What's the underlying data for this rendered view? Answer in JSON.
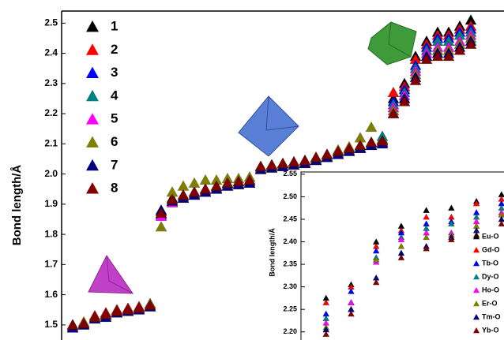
{
  "chart_data": [
    {
      "type": "scatter",
      "y_label": "Bond length/Å",
      "x": [
        1,
        2,
        3,
        4,
        5,
        6,
        7,
        8,
        9,
        10,
        11,
        12,
        13,
        14,
        15,
        16,
        17,
        18,
        19,
        20,
        21,
        22,
        23,
        24,
        25,
        26,
        27,
        28,
        29,
        30,
        31,
        32,
        33,
        34,
        35,
        36,
        37
      ],
      "xlim": [
        0,
        40
      ],
      "ylim": [
        1.45,
        2.54
      ],
      "yticks": [
        1.5,
        1.6,
        1.7,
        1.8,
        1.9,
        {
          "value": 2,
          "label": "2.0"
        },
        2.1,
        2.2,
        2.3,
        2.4,
        2.5
      ],
      "series": [
        {
          "name": "1",
          "color": "#000000",
          "values": [
            1.5,
            1.505,
            1.53,
            1.54,
            1.55,
            1.555,
            1.56,
            1.57,
            1.88,
            1.92,
            1.93,
            1.94,
            1.95,
            1.96,
            1.97,
            1.975,
            1.98,
            2.025,
            2.03,
            2.035,
            2.04,
            2.045,
            2.055,
            2.065,
            2.075,
            2.085,
            2.095,
            2.105,
            2.115,
            2.25,
            2.3,
            2.39,
            2.44,
            2.47,
            2.47,
            2.49,
            2.51
          ]
        },
        {
          "name": "2",
          "color": "#ff0000",
          "values": [
            1.5,
            1.505,
            1.53,
            1.54,
            1.55,
            1.555,
            1.56,
            1.57,
            1.875,
            1.915,
            1.93,
            1.94,
            1.95,
            1.96,
            1.97,
            1.975,
            1.98,
            2.025,
            2.03,
            2.035,
            2.04,
            2.045,
            2.055,
            2.065,
            2.075,
            2.085,
            2.095,
            2.105,
            2.115,
            2.27,
            2.29,
            2.38,
            2.43,
            2.46,
            2.46,
            2.48,
            2.49
          ]
        },
        {
          "name": "3",
          "color": "#0000ff",
          "values": [
            1.49,
            1.5,
            1.52,
            1.53,
            1.54,
            1.545,
            1.55,
            1.56,
            1.865,
            1.905,
            1.92,
            1.93,
            1.94,
            1.95,
            1.96,
            1.965,
            1.97,
            2.015,
            2.02,
            2.025,
            2.03,
            2.035,
            2.045,
            2.055,
            2.065,
            2.075,
            2.085,
            2.095,
            2.105,
            2.24,
            2.28,
            2.36,
            2.42,
            2.45,
            2.45,
            2.47,
            2.48
          ]
        },
        {
          "name": "4",
          "color": "#008080",
          "values": [
            1.495,
            1.5,
            1.525,
            1.535,
            1.545,
            1.55,
            1.555,
            1.565,
            1.87,
            1.91,
            1.925,
            1.935,
            1.945,
            1.955,
            1.965,
            1.97,
            1.975,
            2.02,
            2.025,
            2.03,
            2.035,
            2.04,
            2.05,
            2.06,
            2.07,
            2.08,
            2.09,
            2.1,
            2.125,
            2.23,
            2.27,
            2.35,
            2.41,
            2.44,
            2.44,
            2.46,
            2.47
          ]
        },
        {
          "name": "5",
          "color": "#ff00ff",
          "values": [
            1.495,
            1.5,
            1.52,
            1.53,
            1.54,
            1.545,
            1.55,
            1.56,
            1.86,
            1.905,
            1.92,
            1.93,
            1.94,
            1.95,
            1.96,
            1.965,
            1.97,
            2.015,
            2.02,
            2.025,
            2.03,
            2.035,
            2.045,
            2.055,
            2.065,
            2.075,
            2.085,
            2.095,
            2.1,
            2.22,
            2.26,
            2.34,
            2.4,
            2.42,
            2.42,
            2.44,
            2.46
          ]
        },
        {
          "name": "6",
          "color": "#808000",
          "values": [
            1.5,
            1.51,
            1.52,
            1.53,
            1.545,
            1.55,
            1.555,
            1.57,
            1.825,
            1.94,
            1.96,
            1.97,
            1.98,
            1.98,
            1.985,
            1.985,
            1.99,
            2.02,
            2.025,
            2.03,
            2.035,
            2.04,
            2.05,
            2.06,
            2.08,
            2.09,
            2.12,
            2.155,
            2.11,
            2.21,
            2.25,
            2.33,
            2.39,
            2.41,
            2.41,
            2.43,
            2.45
          ]
        },
        {
          "name": "7",
          "color": "#000080",
          "values": [
            1.49,
            1.5,
            1.52,
            1.525,
            1.54,
            1.545,
            1.55,
            1.56,
            1.88,
            1.91,
            1.92,
            1.93,
            1.94,
            1.95,
            1.96,
            1.965,
            1.97,
            2.015,
            2.02,
            2.025,
            2.03,
            2.035,
            2.045,
            2.055,
            2.065,
            2.075,
            2.085,
            2.095,
            2.1,
            2.2,
            2.25,
            2.32,
            2.39,
            2.4,
            2.4,
            2.42,
            2.44
          ]
        },
        {
          "name": "8",
          "color": "#800000",
          "values": [
            1.5,
            1.505,
            1.525,
            1.535,
            1.545,
            1.55,
            1.555,
            1.565,
            1.87,
            1.915,
            1.93,
            1.94,
            1.95,
            1.96,
            1.97,
            1.975,
            1.98,
            2.025,
            2.03,
            2.035,
            2.04,
            2.045,
            2.055,
            2.065,
            2.075,
            2.085,
            2.095,
            2.105,
            2.11,
            2.2,
            2.24,
            2.31,
            2.38,
            2.39,
            2.39,
            2.41,
            2.43
          ]
        }
      ]
    },
    {
      "type": "scatter",
      "y_label": "Bond length/Å",
      "x": [
        1,
        2,
        3,
        4,
        5,
        6,
        7,
        8
      ],
      "xlim": [
        0,
        8.1
      ],
      "ylim": [
        2.182,
        2.555
      ],
      "yticks": [
        {
          "value": 2.2,
          "label": "2.20"
        },
        2.25,
        {
          "value": 2.3,
          "label": "2.30"
        },
        2.35,
        {
          "value": 2.4,
          "label": "2.40"
        },
        2.45,
        {
          "value": 2.5,
          "label": "2.50"
        },
        2.55
      ],
      "series": [
        {
          "name": "Eu-O",
          "color": "#000000",
          "values": [
            2.275,
            2.305,
            2.4,
            2.435,
            2.47,
            2.475,
            2.49,
            2.505
          ]
        },
        {
          "name": "Gd-O",
          "color": "#ff0000",
          "values": [
            2.265,
            2.3,
            2.39,
            2.425,
            2.455,
            2.455,
            2.485,
            2.495
          ]
        },
        {
          "name": "Tb-O",
          "color": "#0000ff",
          "values": [
            2.24,
            2.29,
            2.38,
            2.42,
            2.44,
            2.445,
            2.465,
            2.485
          ]
        },
        {
          "name": "Dy-O",
          "color": "#008080",
          "values": [
            2.23,
            2.265,
            2.365,
            2.41,
            2.43,
            2.44,
            2.455,
            2.475
          ]
        },
        {
          "name": "Ho-O",
          "color": "#ff00ff",
          "values": [
            2.22,
            2.265,
            2.355,
            2.405,
            2.42,
            2.42,
            2.445,
            2.465
          ]
        },
        {
          "name": "Er-O",
          "color": "#808000",
          "values": [
            2.21,
            2.25,
            2.36,
            2.39,
            2.41,
            2.415,
            2.435,
            2.46
          ]
        },
        {
          "name": "Tm-O",
          "color": "#000080",
          "values": [
            2.205,
            2.25,
            2.32,
            2.375,
            2.39,
            2.41,
            2.425,
            2.45
          ]
        },
        {
          "name": "Yb-O",
          "color": "#800000",
          "values": [
            2.195,
            2.24,
            2.31,
            2.365,
            2.385,
            2.405,
            2.415,
            2.44
          ]
        }
      ]
    }
  ]
}
